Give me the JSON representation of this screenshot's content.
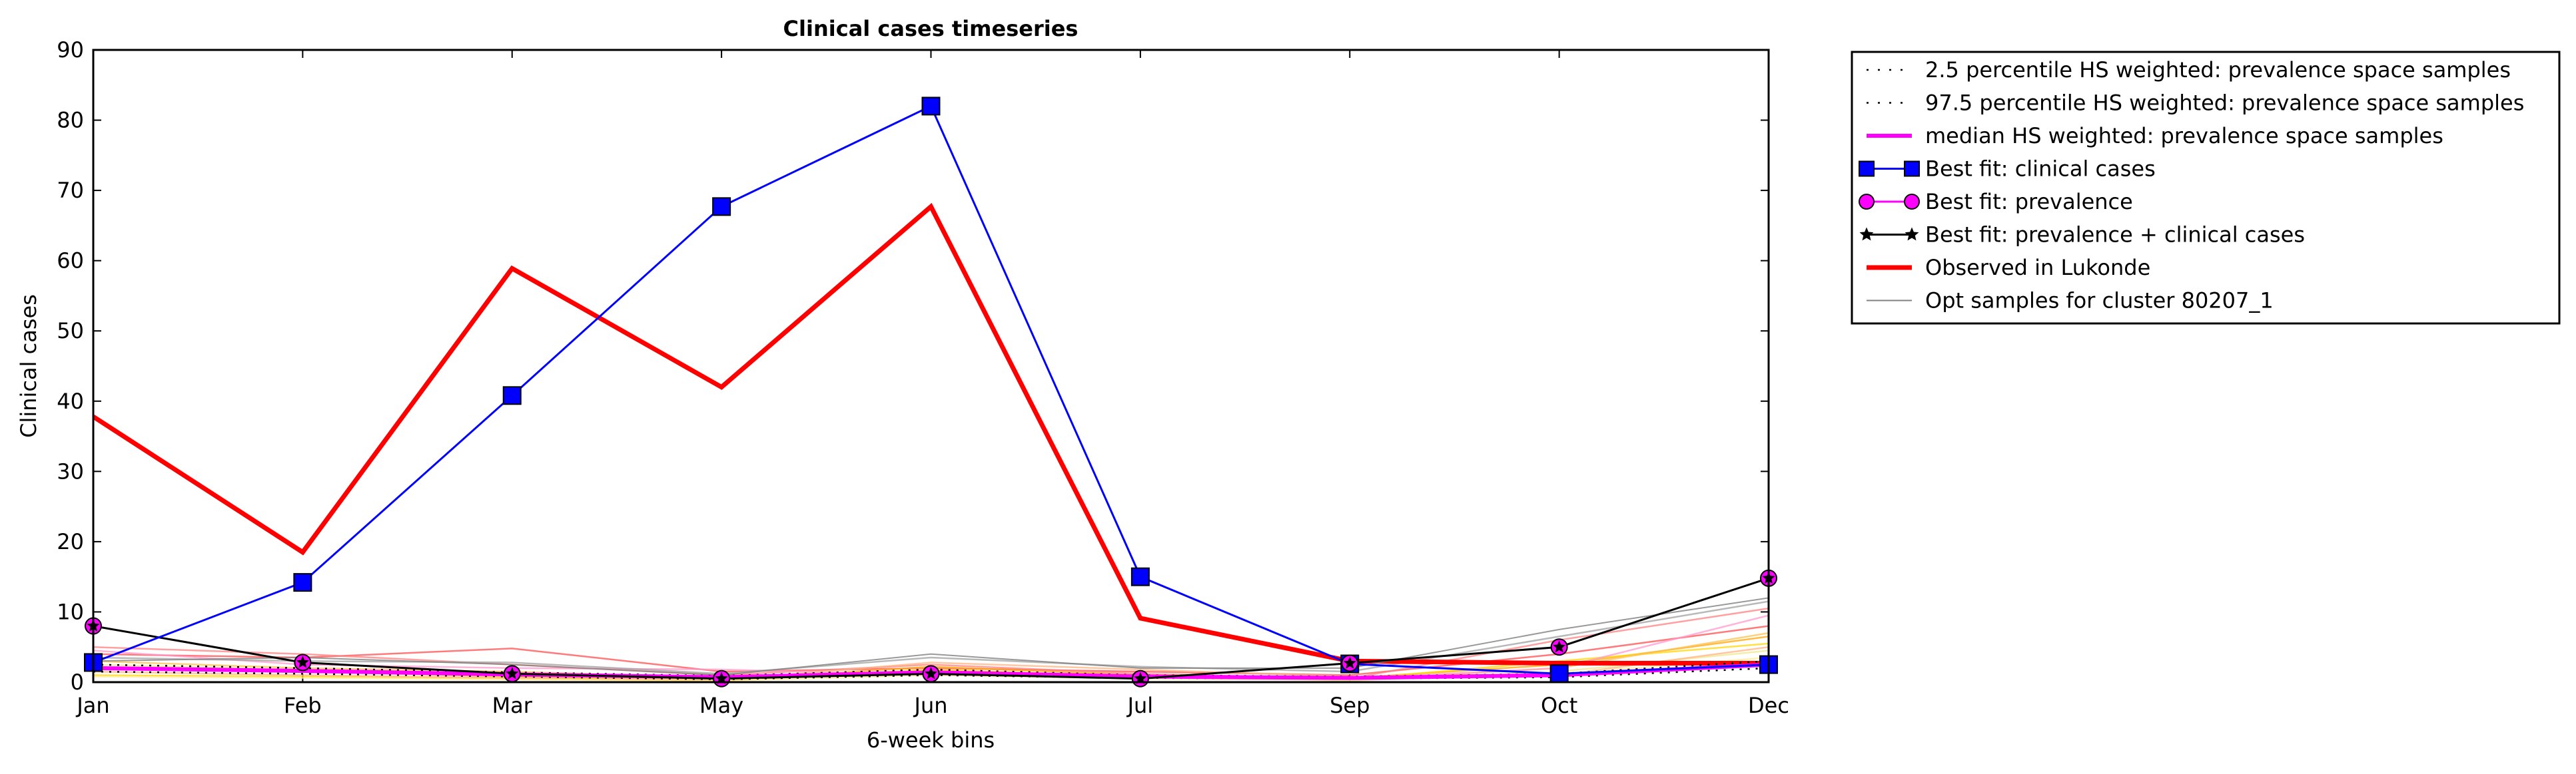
{
  "chart_data": {
    "type": "line",
    "title": "Clinical cases timeseries",
    "xlabel": "6-week bins",
    "ylabel": "Clinical cases",
    "categories": [
      "Jan",
      "Feb",
      "Mar",
      "May",
      "Jun",
      "Jul",
      "Sep",
      "Oct",
      "Dec"
    ],
    "ylim": [
      0,
      90
    ],
    "yticks": [
      0,
      10,
      20,
      30,
      40,
      50,
      60,
      70,
      80,
      90
    ],
    "grid": false,
    "legend_position": "outside right, top",
    "series": [
      {
        "name": "2.5 percentile HS weighted: prevalence space samples",
        "style": "dotted",
        "color": "#000000",
        "values": [
          1.5,
          1.2,
          0.8,
          0.4,
          1.0,
          0.6,
          0.5,
          0.7,
          2.0
        ]
      },
      {
        "name": "97.5 percentile HS weighted: prevalence space samples",
        "style": "dotted",
        "color": "#000000",
        "values": [
          2.5,
          2.0,
          1.4,
          0.9,
          1.8,
          1.0,
          0.8,
          1.2,
          3.0
        ]
      },
      {
        "name": "median HS weighted: prevalence space samples",
        "style": "solid",
        "color": "#ff00ff",
        "values": [
          2.0,
          1.6,
          1.1,
          0.7,
          1.4,
          0.8,
          0.6,
          1.0,
          2.5
        ]
      },
      {
        "name": "Best fit: clinical cases",
        "style": "solid",
        "color": "#0000ff",
        "marker": "square",
        "values": [
          2.8,
          14.2,
          40.8,
          67.7,
          82.0,
          15.0,
          2.6,
          1.2,
          2.5
        ]
      },
      {
        "name": "Best fit: prevalence",
        "style": "solid",
        "color": "#ff00ff",
        "marker": "circle",
        "values": [
          8.0,
          2.8,
          1.2,
          0.5,
          1.2,
          0.5,
          2.7,
          5.0,
          14.8
        ]
      },
      {
        "name": "Best fit: prevalence + clinical cases",
        "style": "solid",
        "color": "#000000",
        "marker": "star",
        "values": [
          8.0,
          2.8,
          1.2,
          0.5,
          1.2,
          0.5,
          2.7,
          5.0,
          14.8
        ]
      },
      {
        "name": "Observed in Lukonde",
        "style": "solid",
        "color": "#ff0000",
        "values": [
          37.8,
          18.5,
          58.9,
          42.0,
          67.7,
          9.1,
          3.0,
          2.7,
          2.7
        ]
      },
      {
        "name": "Opt samples for cluster 80207_1",
        "style": "solid",
        "color": "#808080",
        "values": [
          3.0,
          3.5,
          2.5,
          1.0,
          4.0,
          2.0,
          2.0,
          7.5,
          12.0
        ]
      }
    ],
    "sample_traces": [
      {
        "color": "#ff4d4d",
        "values": [
          4.0,
          3.5,
          4.8,
          1.5,
          2.0,
          1.5,
          1.0,
          4.0,
          8.0
        ]
      },
      {
        "color": "#ff7f7f",
        "values": [
          5.0,
          4.0,
          2.5,
          1.0,
          2.5,
          1.2,
          0.5,
          6.0,
          10.5
        ]
      },
      {
        "color": "#ffa500",
        "values": [
          2.0,
          1.5,
          0.8,
          0.3,
          2.2,
          1.0,
          0.6,
          2.5,
          6.5
        ]
      },
      {
        "color": "#ffd700",
        "values": [
          1.0,
          0.8,
          0.5,
          0.2,
          1.8,
          0.8,
          0.4,
          3.0,
          5.5
        ]
      },
      {
        "color": "#ffc04d",
        "values": [
          3.0,
          2.0,
          1.5,
          0.6,
          1.5,
          0.7,
          0.3,
          2.0,
          7.0
        ]
      },
      {
        "color": "#f0e68c",
        "values": [
          2.5,
          1.8,
          1.0,
          0.4,
          1.2,
          0.9,
          0.2,
          1.5,
          4.5
        ]
      },
      {
        "color": "#ff99cc",
        "values": [
          4.5,
          2.5,
          2.0,
          1.8,
          1.0,
          1.0,
          0.5,
          2.0,
          9.5
        ]
      },
      {
        "color": "#a0a0a0",
        "values": [
          3.5,
          3.0,
          2.8,
          1.2,
          3.5,
          2.2,
          1.5,
          6.5,
          11.5
        ]
      },
      {
        "color": "#ffb380",
        "values": [
          1.5,
          1.0,
          0.6,
          0.3,
          2.8,
          1.8,
          0.8,
          1.0,
          5.0
        ]
      },
      {
        "color": "#ffeb99",
        "values": [
          0.8,
          0.6,
          0.4,
          0.2,
          1.0,
          0.5,
          0.3,
          1.2,
          3.5
        ]
      }
    ]
  }
}
